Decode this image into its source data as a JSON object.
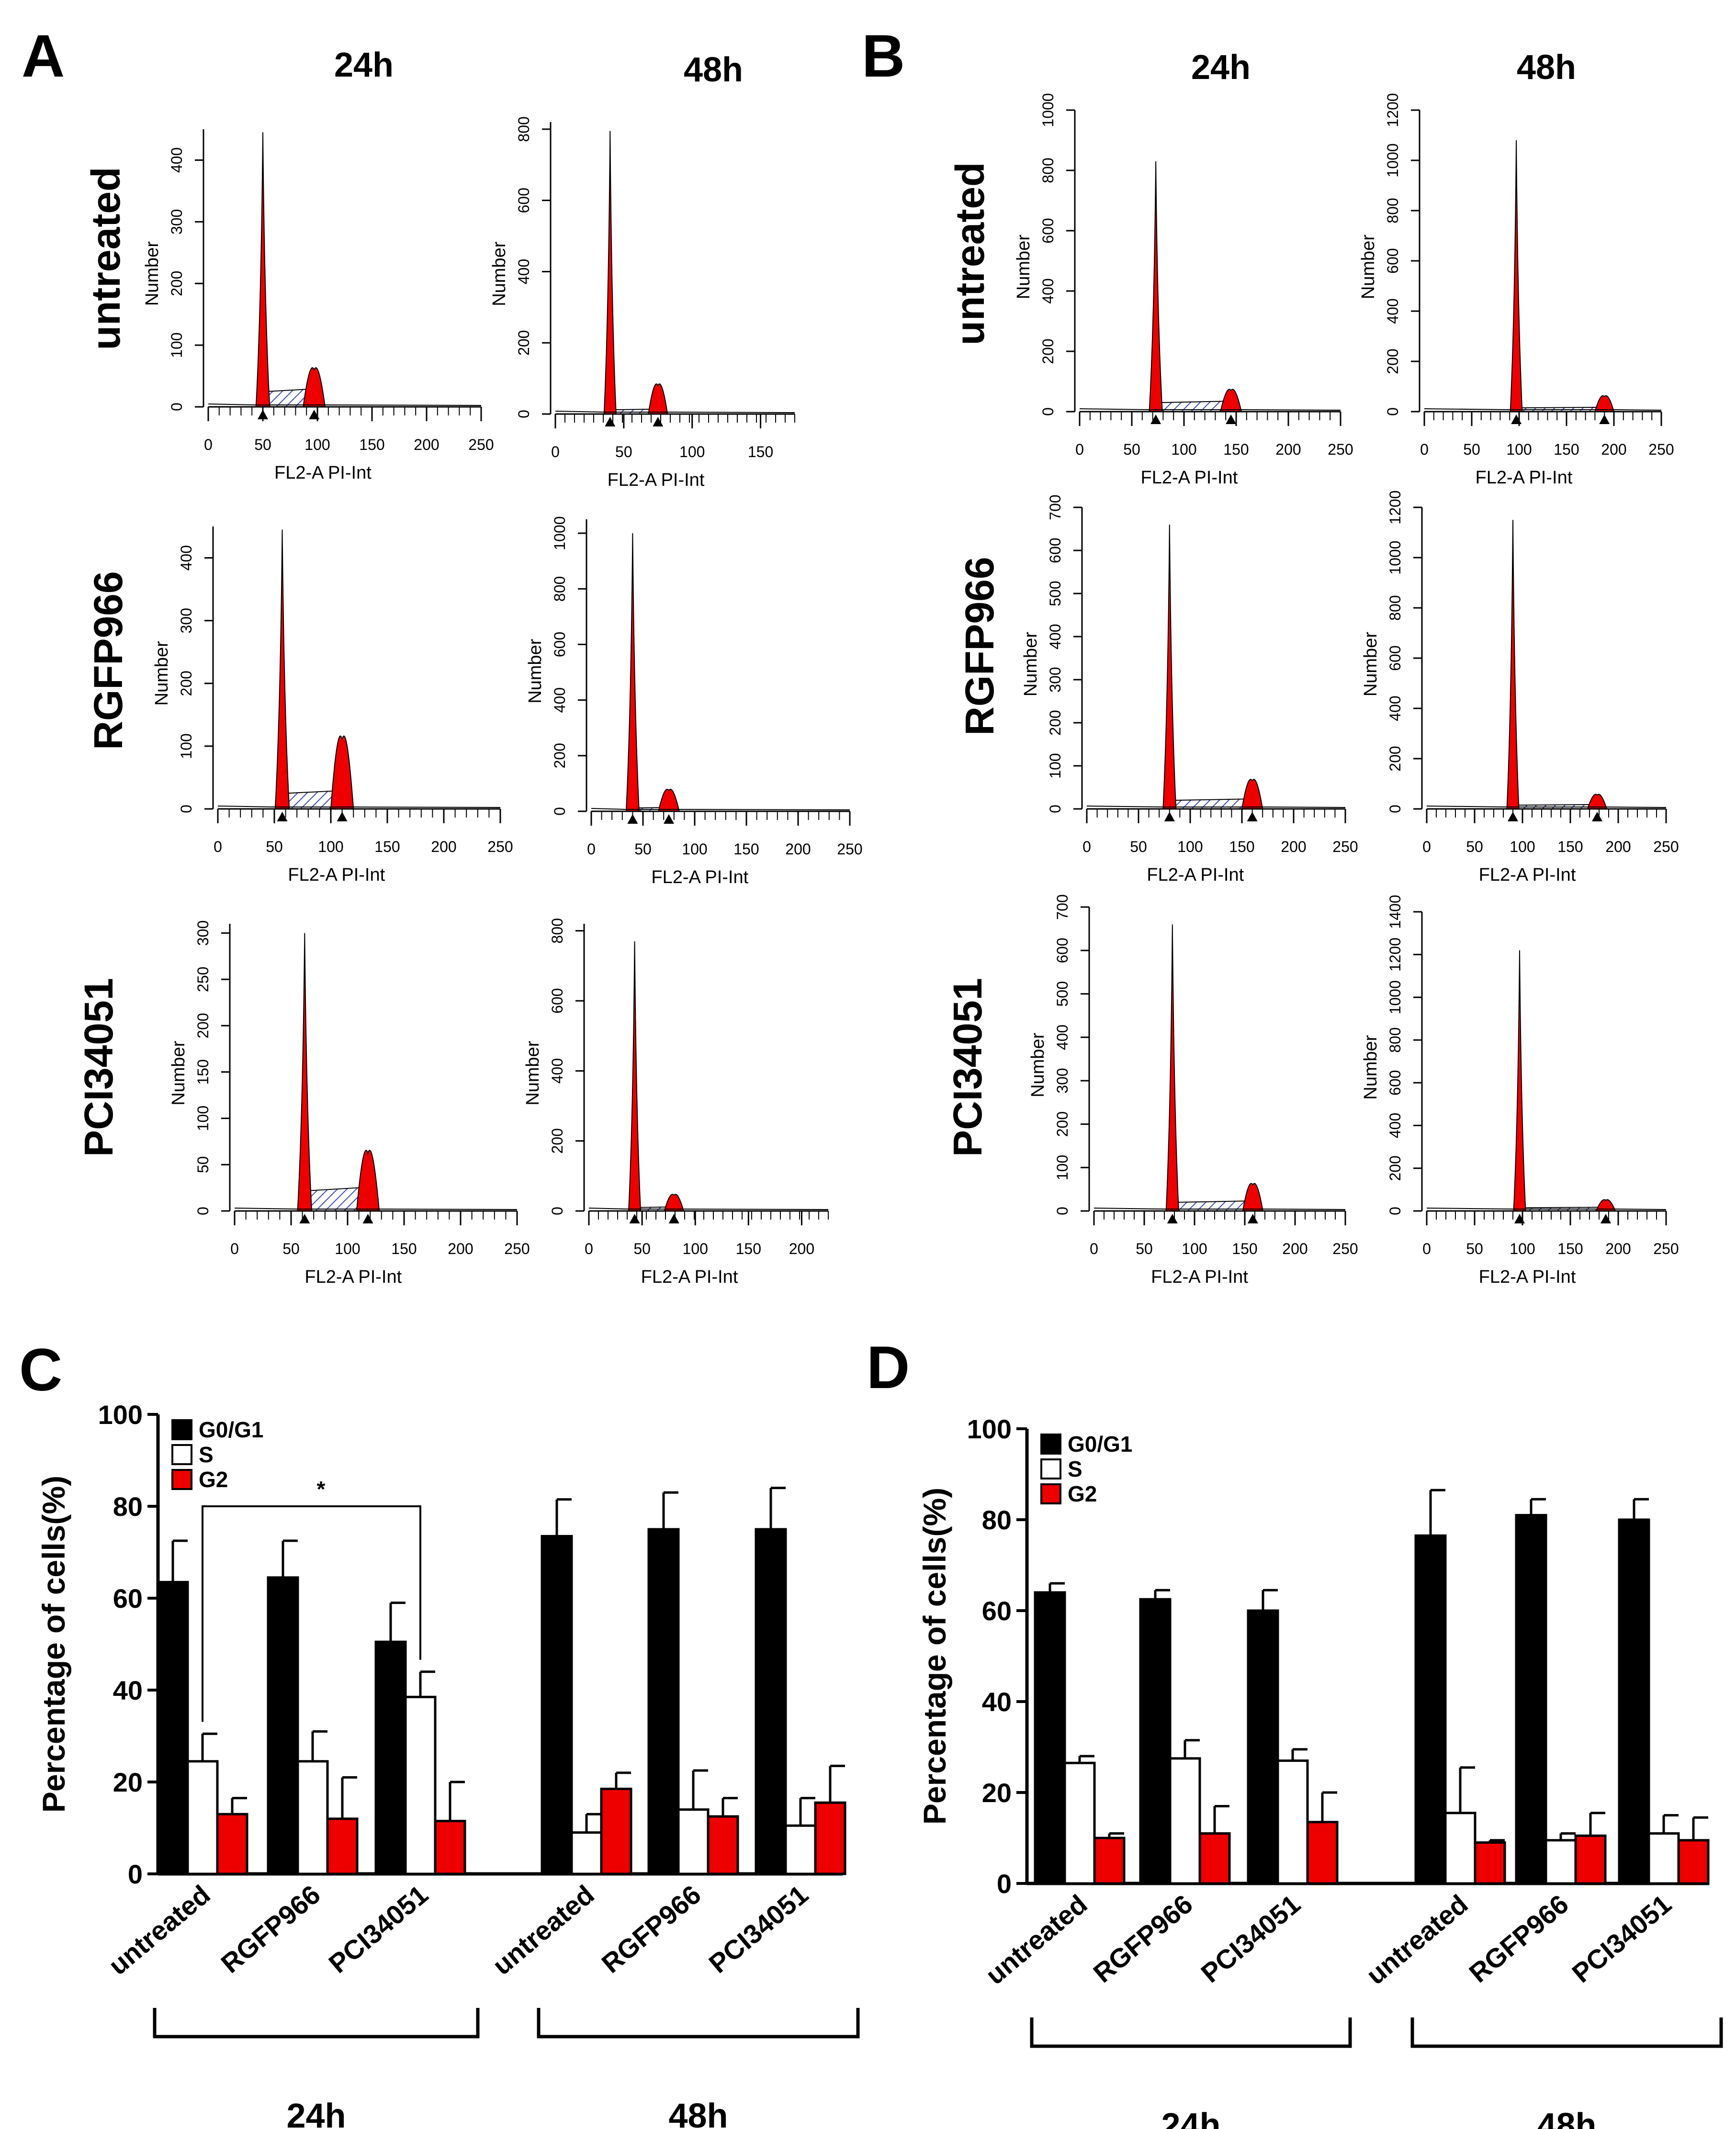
{
  "figure": {
    "colors": {
      "G0_G1": "#000000",
      "S": "#ffffff",
      "G2": "#ee0000",
      "hatch": "#3b4fb0"
    }
  },
  "chart_data": [
    {
      "type": "histogram",
      "panel": "A",
      "column_titles": [
        "24h",
        "48h"
      ],
      "row_titles": [
        "untreated",
        "RGFP966",
        "PCI34051"
      ],
      "plots": [
        {
          "row": "untreated",
          "col": "24h",
          "xlabel": "FL2-A PI-Int",
          "ylabel": "Number",
          "xlim": [
            0,
            250
          ],
          "xticks": [
            0,
            50,
            100,
            150,
            200,
            250
          ],
          "ylim": [
            0,
            450
          ],
          "yticks": [
            0,
            100,
            200,
            300,
            400
          ],
          "g1_peak": {
            "x": 50,
            "y": 445
          },
          "g2_peak": {
            "x": 97,
            "y": 60
          },
          "s_level": 25
        },
        {
          "row": "untreated",
          "col": "48h",
          "xlabel": "FL2-A PI-Int",
          "ylabel": "Number",
          "xlim": [
            0,
            175
          ],
          "xticks": [
            0,
            50,
            100,
            150
          ],
          "ylim": [
            0,
            820
          ],
          "yticks": [
            0,
            200,
            400,
            600,
            800
          ],
          "g1_peak": {
            "x": 40,
            "y": 795
          },
          "g2_peak": {
            "x": 75,
            "y": 80
          },
          "s_level": 12
        },
        {
          "row": "RGFP966",
          "col": "24h",
          "xlabel": "FL2-A PI-Int",
          "ylabel": "Number",
          "xlim": [
            0,
            250
          ],
          "xticks": [
            0,
            50,
            100,
            150,
            200,
            250
          ],
          "ylim": [
            0,
            450
          ],
          "yticks": [
            0,
            100,
            200,
            300,
            400
          ],
          "g1_peak": {
            "x": 57,
            "y": 445
          },
          "g2_peak": {
            "x": 110,
            "y": 110
          },
          "s_level": 25
        },
        {
          "row": "RGFP966",
          "col": "48h",
          "xlabel": "FL2-A PI-Int",
          "ylabel": "Number",
          "xlim": [
            0,
            250
          ],
          "xticks": [
            0,
            50,
            100,
            150,
            200,
            250
          ],
          "ylim": [
            0,
            1050
          ],
          "yticks": [
            0,
            200,
            400,
            600,
            800,
            1000
          ],
          "g1_peak": {
            "x": 40,
            "y": 1000
          },
          "g2_peak": {
            "x": 75,
            "y": 75
          },
          "s_level": 12
        },
        {
          "row": "PCI34051",
          "col": "24h",
          "xlabel": "FL2-A PI-Int",
          "ylabel": "Number",
          "xlim": [
            0,
            250
          ],
          "xticks": [
            0,
            50,
            100,
            150,
            200,
            250
          ],
          "ylim": [
            0,
            310
          ],
          "yticks": [
            0,
            50,
            100,
            150,
            200,
            250,
            300
          ],
          "g1_peak": {
            "x": 62,
            "y": 300
          },
          "g2_peak": {
            "x": 118,
            "y": 62
          },
          "s_level": 22
        },
        {
          "row": "PCI34051",
          "col": "48h",
          "xlabel": "FL2-A PI-Int",
          "ylabel": "Number",
          "xlim": [
            0,
            225
          ],
          "xticks": [
            0,
            50,
            100,
            150,
            200
          ],
          "ylim": [
            0,
            820
          ],
          "yticks": [
            0,
            200,
            400,
            600,
            800
          ],
          "g1_peak": {
            "x": 43,
            "y": 770
          },
          "g2_peak": {
            "x": 80,
            "y": 45
          },
          "s_level": 10
        }
      ]
    },
    {
      "type": "histogram",
      "panel": "B",
      "column_titles": [
        "24h",
        "48h"
      ],
      "row_titles": [
        "untreated",
        "RGFP966",
        "PCI34051"
      ],
      "plots": [
        {
          "row": "untreated",
          "col": "24h",
          "xlabel": "FL2-A PI-Int",
          "ylabel": "Number",
          "xlim": [
            0,
            250
          ],
          "xticks": [
            0,
            50,
            100,
            150,
            200,
            250
          ],
          "ylim": [
            0,
            1000
          ],
          "yticks": [
            0,
            200,
            400,
            600,
            800,
            1000
          ],
          "g1_peak": {
            "x": 73,
            "y": 830
          },
          "g2_peak": {
            "x": 145,
            "y": 70
          },
          "s_level": 30
        },
        {
          "row": "untreated",
          "col": "48h",
          "xlabel": "FL2-A PI-Int",
          "ylabel": "Number",
          "xlim": [
            0,
            250
          ],
          "xticks": [
            0,
            50,
            100,
            150,
            200,
            250
          ],
          "ylim": [
            0,
            1200
          ],
          "yticks": [
            0,
            200,
            400,
            600,
            800,
            1000,
            1200
          ],
          "g1_peak": {
            "x": 97,
            "y": 1080
          },
          "g2_peak": {
            "x": 190,
            "y": 60
          },
          "s_level": 15
        },
        {
          "row": "RGFP966",
          "col": "24h",
          "xlabel": "FL2-A PI-Int",
          "ylabel": "Number",
          "xlim": [
            0,
            250
          ],
          "xticks": [
            0,
            50,
            100,
            150,
            200,
            250
          ],
          "ylim": [
            0,
            700
          ],
          "yticks": [
            0,
            100,
            200,
            300,
            400,
            500,
            600,
            700
          ],
          "g1_peak": {
            "x": 80,
            "y": 660
          },
          "g2_peak": {
            "x": 160,
            "y": 65
          },
          "s_level": 20
        },
        {
          "row": "RGFP966",
          "col": "48h",
          "xlabel": "FL2-A PI-Int",
          "ylabel": "Number",
          "xlim": [
            0,
            250
          ],
          "xticks": [
            0,
            50,
            100,
            150,
            200,
            250
          ],
          "ylim": [
            0,
            1200
          ],
          "yticks": [
            0,
            200,
            400,
            600,
            800,
            1000,
            1200
          ],
          "g1_peak": {
            "x": 90,
            "y": 1150
          },
          "g2_peak": {
            "x": 178,
            "y": 55
          },
          "s_level": 15
        },
        {
          "row": "PCI34051",
          "col": "24h",
          "xlabel": "FL2-A PI-Int",
          "ylabel": "Number",
          "xlim": [
            0,
            250
          ],
          "xticks": [
            0,
            50,
            100,
            150,
            200,
            250
          ],
          "ylim": [
            0,
            700
          ],
          "yticks": [
            0,
            100,
            200,
            300,
            400,
            500,
            600,
            700
          ],
          "g1_peak": {
            "x": 78,
            "y": 660
          },
          "g2_peak": {
            "x": 158,
            "y": 60
          },
          "s_level": 20
        },
        {
          "row": "PCI34051",
          "col": "48h",
          "xlabel": "FL2-A PI-Int",
          "ylabel": "Number",
          "xlim": [
            0,
            250
          ],
          "xticks": [
            0,
            50,
            100,
            150,
            200,
            250
          ],
          "ylim": [
            0,
            1400
          ],
          "yticks": [
            0,
            200,
            400,
            600,
            800,
            1000,
            1200,
            1400
          ],
          "g1_peak": {
            "x": 97,
            "y": 1220
          },
          "g2_peak": {
            "x": 187,
            "y": 50
          },
          "s_level": 15
        }
      ]
    },
    {
      "type": "bar",
      "panel": "C",
      "ylabel": "Percentage of cells(%)",
      "ylim": [
        0,
        100
      ],
      "yticks": [
        0,
        20,
        40,
        60,
        80,
        100
      ],
      "categories": [
        "untreated",
        "RGFP966",
        "PCI34051",
        "untreated",
        "RGFP966",
        "PCI34051"
      ],
      "groups": [
        {
          "label": "24h",
          "span": [
            0,
            2
          ]
        },
        {
          "label": "48h",
          "span": [
            3,
            5
          ]
        }
      ],
      "series": [
        {
          "name": "G0/G1",
          "values": [
            63.5,
            64.5,
            50.5,
            73.5,
            75,
            75
          ],
          "errors": [
            9,
            8,
            8.5,
            8,
            8,
            9
          ]
        },
        {
          "name": "S",
          "values": [
            24.5,
            24.5,
            38.5,
            9,
            14,
            10.5
          ],
          "errors": [
            6,
            6.5,
            5.5,
            4,
            8.5,
            6
          ]
        },
        {
          "name": "G2",
          "values": [
            13,
            12,
            11.5,
            18.5,
            12.5,
            15.5
          ],
          "errors": [
            3.5,
            9,
            8.5,
            3.5,
            4,
            8
          ]
        }
      ],
      "annotations": [
        {
          "text": "*",
          "between": [
            "G0/G1 untreated 24h",
            "S PCI34051 24h"
          ]
        }
      ]
    },
    {
      "type": "bar",
      "panel": "D",
      "ylabel": "Percentage of cells(%)",
      "ylim": [
        0,
        100
      ],
      "yticks": [
        0,
        20,
        40,
        60,
        80,
        100
      ],
      "categories": [
        "untreated",
        "RGFP966",
        "PCI34051",
        "untreated",
        "RGFP966",
        "PCI34051"
      ],
      "groups": [
        {
          "label": "24h",
          "span": [
            0,
            2
          ]
        },
        {
          "label": "48h",
          "span": [
            3,
            5
          ]
        }
      ],
      "series": [
        {
          "name": "G0/G1",
          "values": [
            64,
            62.5,
            60,
            76.5,
            81,
            80
          ],
          "errors": [
            2,
            2,
            4.5,
            10,
            3.5,
            4.5
          ]
        },
        {
          "name": "S",
          "values": [
            26.5,
            27.5,
            27,
            15.5,
            9.5,
            11
          ],
          "errors": [
            1.5,
            4,
            2.5,
            10,
            1.5,
            4
          ]
        },
        {
          "name": "G2",
          "values": [
            10,
            11,
            13.5,
            9,
            10.5,
            9.5
          ],
          "errors": [
            1,
            6,
            6.5,
            0.5,
            5,
            5
          ]
        }
      ]
    }
  ]
}
